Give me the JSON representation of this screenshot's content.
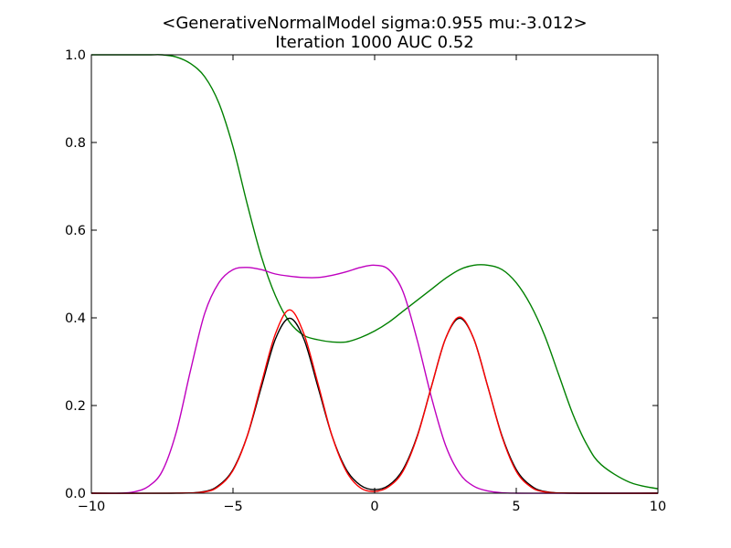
{
  "chart_data": {
    "type": "line",
    "title": "<GenerativeNormalModel  sigma:0.955 mu:-3.012>",
    "subtitle": "Iteration 1000 AUC 0.52",
    "xlabel": "",
    "ylabel": "",
    "xlim": [
      -10,
      10
    ],
    "ylim": [
      0,
      1
    ],
    "grid": false,
    "x_ticks": [
      -10,
      -5,
      0,
      5,
      10
    ],
    "x_tick_labels": [
      "−10",
      "−5",
      "0",
      "5",
      "10"
    ],
    "y_ticks": [
      0,
      0.2,
      0.4,
      0.6,
      0.8,
      1.0
    ],
    "y_tick_labels": [
      "0.0",
      "0.2",
      "0.4",
      "0.6",
      "0.8",
      "1.0"
    ],
    "series": [
      {
        "color": "#008000",
        "x": [
          -10,
          -9,
          -8,
          -7.5,
          -7,
          -6.5,
          -6,
          -5.5,
          -5,
          -4.5,
          -4,
          -3.5,
          -3,
          -2.5,
          -2,
          -1.5,
          -1,
          -0.5,
          0,
          0.5,
          1,
          1.5,
          2,
          2.5,
          3,
          3.5,
          4,
          4.5,
          5,
          5.5,
          6,
          6.5,
          7,
          7.5,
          8,
          9,
          10
        ],
        "values": [
          1.0,
          1.0,
          1.0,
          1.0,
          0.995,
          0.98,
          0.95,
          0.89,
          0.79,
          0.66,
          0.54,
          0.45,
          0.39,
          0.36,
          0.35,
          0.345,
          0.345,
          0.355,
          0.37,
          0.39,
          0.415,
          0.44,
          0.465,
          0.49,
          0.51,
          0.52,
          0.52,
          0.51,
          0.48,
          0.43,
          0.36,
          0.27,
          0.18,
          0.11,
          0.065,
          0.025,
          0.01
        ]
      },
      {
        "color": "#bf00bf",
        "x": [
          -10,
          -9,
          -8.5,
          -8,
          -7.5,
          -7,
          -6.5,
          -6,
          -5.5,
          -5,
          -4.5,
          -4,
          -3.5,
          -3,
          -2.5,
          -2,
          -1.5,
          -1,
          -0.5,
          0,
          0.5,
          1,
          1.5,
          2,
          2.5,
          3,
          3.5,
          4,
          4.5,
          5,
          6,
          7,
          8,
          10
        ],
        "values": [
          0,
          0,
          0.003,
          0.015,
          0.05,
          0.14,
          0.28,
          0.41,
          0.48,
          0.51,
          0.515,
          0.51,
          0.5,
          0.495,
          0.492,
          0.492,
          0.497,
          0.505,
          0.515,
          0.52,
          0.51,
          0.46,
          0.35,
          0.22,
          0.11,
          0.045,
          0.016,
          0.005,
          0.001,
          0,
          0,
          0,
          0,
          0
        ]
      },
      {
        "color": "#000000",
        "x": [
          -10,
          -7,
          -6,
          -5.5,
          -5,
          -4.5,
          -4,
          -3.5,
          -3,
          -2.5,
          -2,
          -1.5,
          -1,
          -0.5,
          0,
          0.5,
          1,
          1.5,
          2,
          2.5,
          3,
          3.5,
          4,
          4.5,
          5,
          5.5,
          6,
          7,
          10
        ],
        "values": [
          0,
          0.0001,
          0.004,
          0.018,
          0.054,
          0.13,
          0.242,
          0.352,
          0.399,
          0.352,
          0.242,
          0.13,
          0.054,
          0.018,
          0.008,
          0.018,
          0.054,
          0.13,
          0.242,
          0.352,
          0.399,
          0.352,
          0.242,
          0.13,
          0.054,
          0.018,
          0.004,
          0.0001,
          0
        ]
      },
      {
        "color": "#ff0000",
        "x": [
          -10,
          -7,
          -6,
          -5.5,
          -5,
          -4.5,
          -4,
          -3.5,
          -3,
          -2.5,
          -2,
          -1.5,
          -1,
          -0.5,
          0,
          0.5,
          1,
          1.5,
          2,
          2.5,
          3,
          3.5,
          4,
          4.5,
          5,
          5.5,
          6,
          7,
          10
        ],
        "values": [
          0,
          0.0001,
          0.003,
          0.016,
          0.052,
          0.13,
          0.25,
          0.364,
          0.418,
          0.364,
          0.25,
          0.13,
          0.05,
          0.012,
          0.004,
          0.015,
          0.05,
          0.128,
          0.242,
          0.352,
          0.402,
          0.352,
          0.242,
          0.128,
          0.05,
          0.015,
          0.003,
          0.0001,
          0
        ]
      }
    ]
  }
}
